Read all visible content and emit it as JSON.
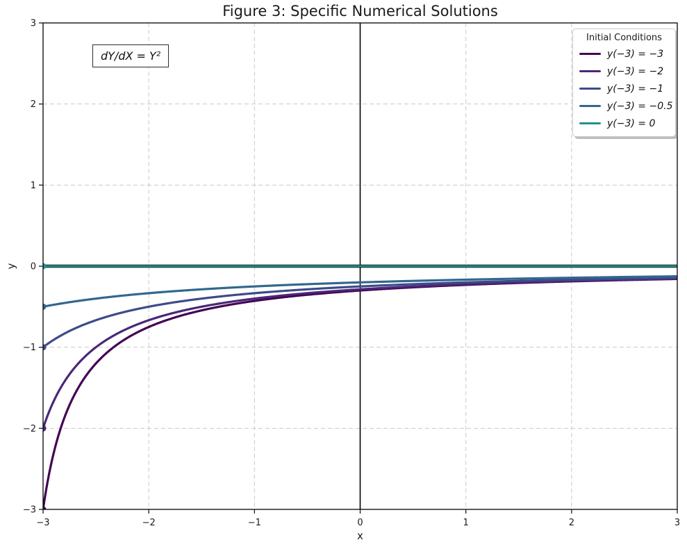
{
  "figure": {
    "title": "Figure 3: Specific Numerical Solutions",
    "xlabel": "x",
    "ylabel": "y",
    "annotation": "dY/dX = Y²"
  },
  "legend": {
    "title": "Initial Conditions",
    "position": "upper right",
    "items": [
      {
        "label": "y(−3) = −3",
        "color": "#440154"
      },
      {
        "label": "y(−3) = −2",
        "color": "#482878"
      },
      {
        "label": "y(−3) = −1",
        "color": "#3e4a89"
      },
      {
        "label": "y(−3) = −0.5",
        "color": "#31688e"
      },
      {
        "label": "y(−3) = 0",
        "color": "#21918c"
      }
    ]
  },
  "chart_data": {
    "type": "line",
    "title": "Figure 3: Specific Numerical Solutions",
    "xlabel": "x",
    "ylabel": "y",
    "xlim": [
      -3,
      3
    ],
    "ylim": [
      -3,
      3
    ],
    "grid": "dashed",
    "legend_position": "upper right",
    "equation": "dY/dX = Y²",
    "x_tick_values": [
      -3,
      -2,
      -1,
      0,
      1,
      2,
      3
    ],
    "x_tick_labels": [
      "−3",
      "−2",
      "−1",
      "0",
      "1",
      "2",
      "3"
    ],
    "y_tick_values": [
      3,
      2,
      1,
      0,
      -1,
      -2,
      -3
    ],
    "y_tick_labels": [
      "3",
      "2",
      "1",
      "0",
      "−1",
      "−2",
      "−3"
    ],
    "zero_axlines": {
      "horizontal_y": 0,
      "vertical_x": 0,
      "color": "#000000"
    },
    "series": [
      {
        "name": "y(−3) = −3",
        "y0": -3,
        "color": "#440154",
        "x": [
          -3,
          -2.98,
          -2.95,
          -2.9,
          -2.85,
          -2.8,
          -2.7,
          -2.6,
          -2.5,
          -2.25,
          -2,
          -1.75,
          -1.5,
          -1,
          -0.5,
          0,
          0.5,
          1,
          1.5,
          2,
          2.5,
          3
        ],
        "y": [
          -3,
          -2.8302,
          -2.6087,
          -2.3077,
          -2.069,
          -1.875,
          -1.5789,
          -1.3636,
          -1.2,
          -0.9231,
          -0.75,
          -0.6316,
          -0.5455,
          -0.4286,
          -0.3529,
          -0.3,
          -0.2609,
          -0.2308,
          -0.2069,
          -0.1875,
          -0.1714,
          -0.1579
        ]
      },
      {
        "name": "y(−3) = −2",
        "y0": -2,
        "color": "#482878",
        "x": [
          -3,
          -2.95,
          -2.9,
          -2.8,
          -2.7,
          -2.6,
          -2.5,
          -2.25,
          -2,
          -1.75,
          -1.5,
          -1,
          -0.5,
          0,
          0.5,
          1,
          1.5,
          2,
          2.5,
          3
        ],
        "y": [
          -2,
          -1.8182,
          -1.6667,
          -1.4286,
          -1.25,
          -1.1111,
          -1,
          -0.8,
          -0.6667,
          -0.5714,
          -0.5,
          -0.4,
          -0.3333,
          -0.2857,
          -0.25,
          -0.2222,
          -0.2,
          -0.1818,
          -0.1667,
          -0.1538
        ]
      },
      {
        "name": "y(−3) = −1",
        "y0": -1,
        "color": "#3e4a89",
        "x": [
          -3,
          -2.9,
          -2.8,
          -2.6,
          -2.5,
          -2.25,
          -2,
          -1.5,
          -1,
          -0.5,
          0,
          0.5,
          1,
          1.5,
          2,
          2.5,
          3
        ],
        "y": [
          -1,
          -0.9091,
          -0.8333,
          -0.7143,
          -0.6667,
          -0.5714,
          -0.5,
          -0.4,
          -0.3333,
          -0.2857,
          -0.25,
          -0.2222,
          -0.2,
          -0.1818,
          -0.1667,
          -0.1538,
          -0.1429
        ]
      },
      {
        "name": "y(−3) = −0.5",
        "y0": -0.5,
        "color": "#31688e",
        "x": [
          -3,
          -2.5,
          -2,
          -1.5,
          -1,
          -0.5,
          0,
          0.5,
          1,
          1.5,
          2,
          2.5,
          3
        ],
        "y": [
          -0.5,
          -0.4,
          -0.3333,
          -0.2857,
          -0.25,
          -0.2222,
          -0.2,
          -0.1818,
          -0.1667,
          -0.1538,
          -0.1429,
          -0.1333,
          -0.125
        ]
      },
      {
        "name": "y(−3) = 0",
        "y0": 0,
        "color": "#21918c",
        "x": [
          -3,
          -2,
          -1,
          0,
          1,
          2,
          3
        ],
        "y": [
          0,
          0,
          0,
          0,
          0,
          0,
          0
        ]
      }
    ]
  }
}
